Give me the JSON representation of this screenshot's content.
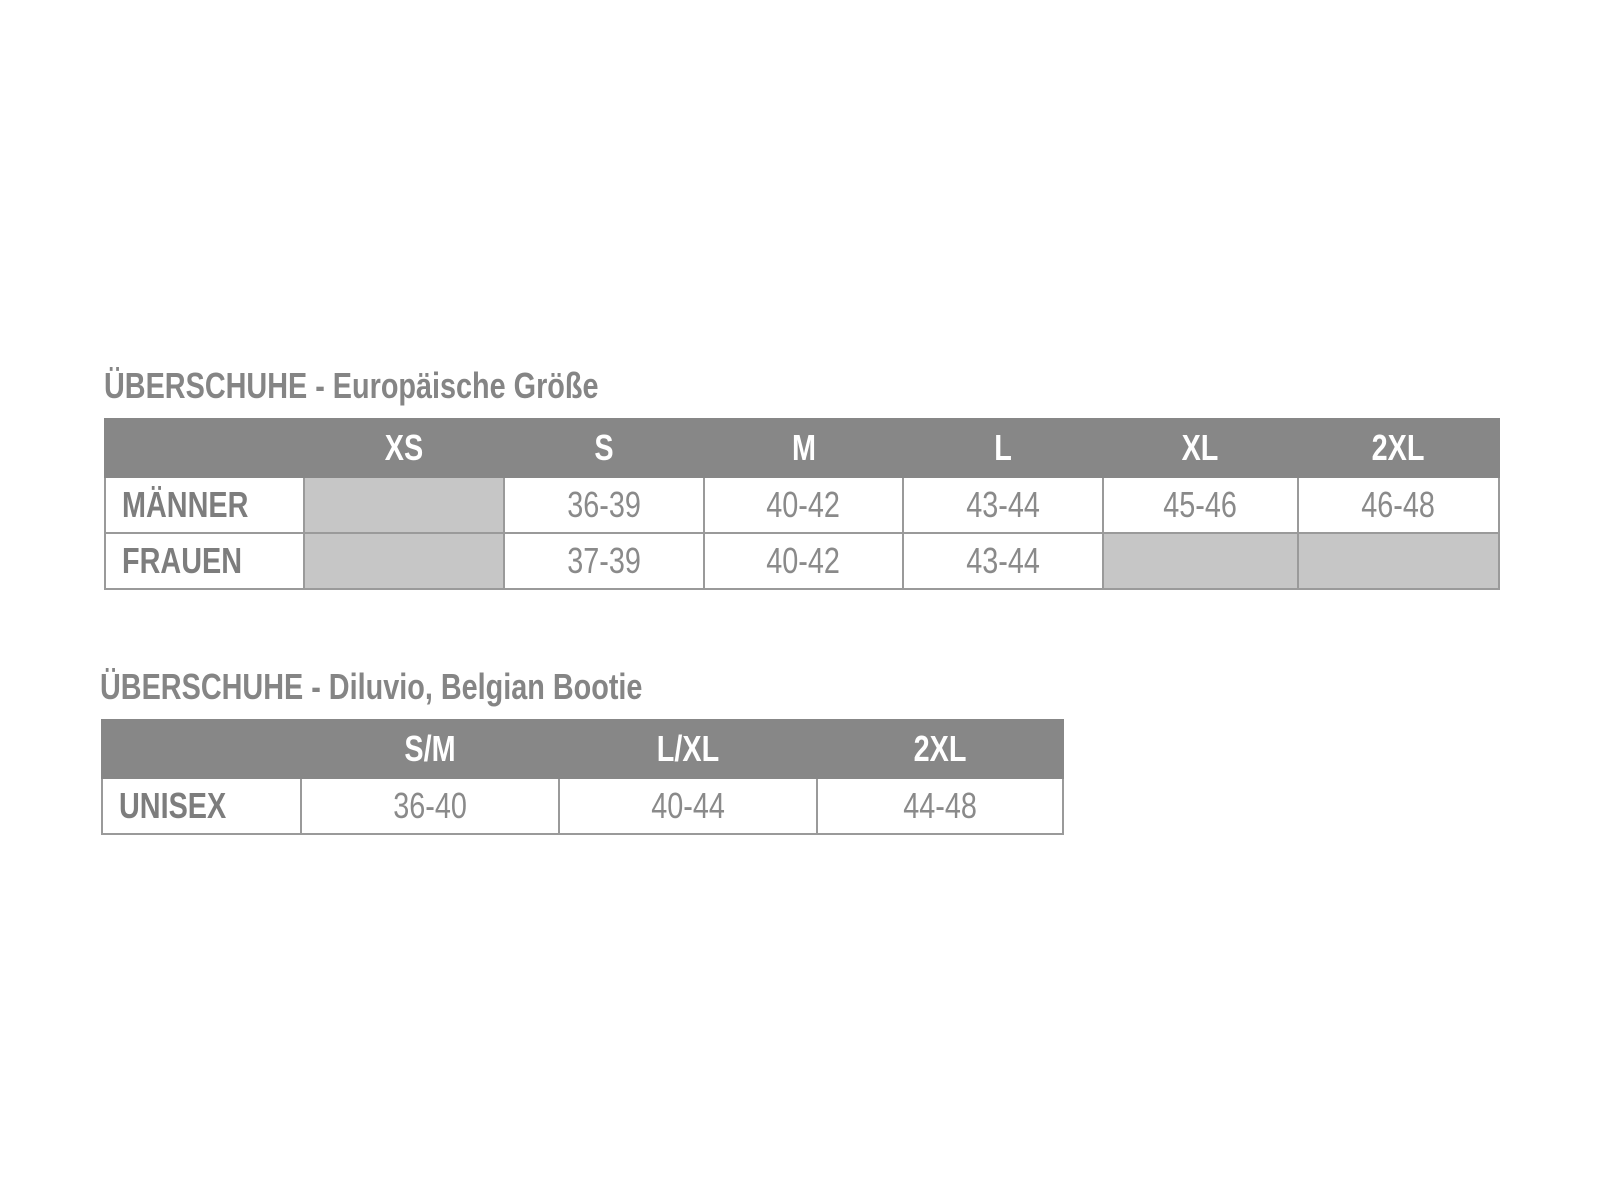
{
  "table1": {
    "title": "ÜBERSCHUHE - Europäische Größe",
    "headers": [
      "",
      "XS",
      "S",
      "M",
      "L",
      "XL",
      "2XL"
    ],
    "rows": [
      {
        "label": "MÄNNER",
        "cells": [
          "",
          "36-39",
          "40-42",
          "43-44",
          "45-46",
          "46-48"
        ]
      },
      {
        "label": "FRAUEN",
        "cells": [
          "",
          "37-39",
          "40-42",
          "43-44",
          "",
          ""
        ]
      }
    ]
  },
  "table2": {
    "title": "ÜBERSCHUHE - Diluvio, Belgian Bootie",
    "headers": [
      "",
      "S/M",
      "L/XL",
      "2XL"
    ],
    "rows": [
      {
        "label": "UNISEX",
        "cells": [
          "36-40",
          "40-44",
          "44-48"
        ]
      }
    ]
  },
  "colors": {
    "header_bg": "#878787",
    "unavailable_cell": "#c6c6c6",
    "text": "#858585"
  }
}
